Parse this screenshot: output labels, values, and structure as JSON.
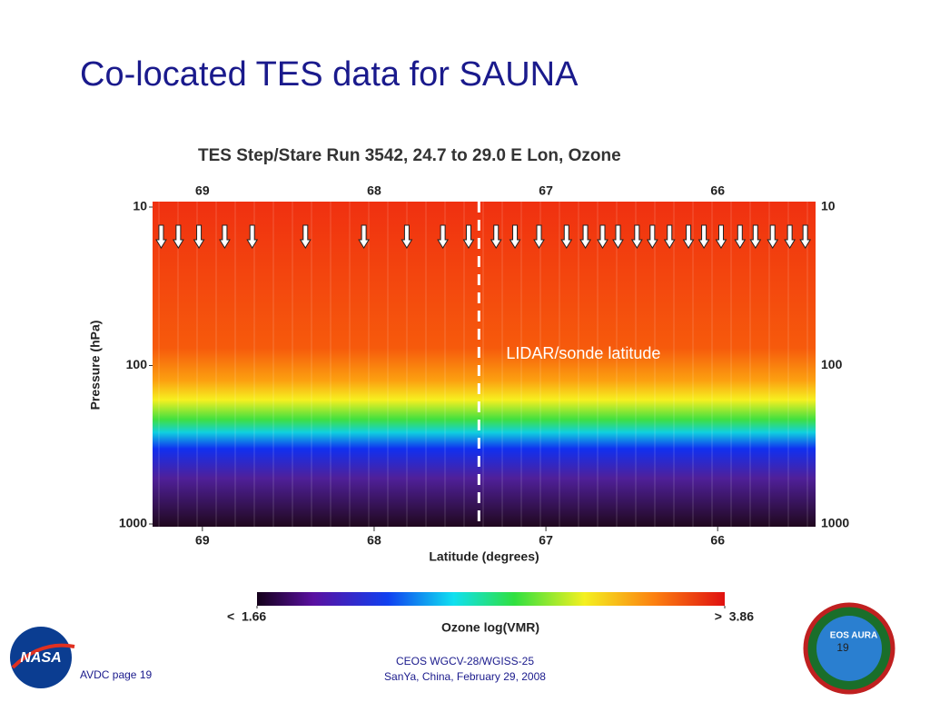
{
  "slide": {
    "title": "Co-located TES data for SAUNA",
    "footer_left": "AVDC page 19",
    "footer_center": [
      "CEOS WGCV-28/WGISS-25",
      "SanYa, China, February 29, 2008"
    ],
    "page_number": "19",
    "logos": [
      "NASA",
      "EOS AURA"
    ]
  },
  "chart_data": {
    "type": "contour",
    "title": "TES Step/Stare Run 3542, 24.7 to 29.0 E Lon,  Ozone",
    "xlabel": "Latitude (degrees)",
    "ylabel": "Pressure (hPa)",
    "xlim": [
      69.29,
      65.43
    ],
    "xticks": [
      69,
      68,
      67,
      66
    ],
    "ylim": [
      1000,
      10
    ],
    "yticks": [
      10,
      100,
      1000
    ],
    "log_y": true,
    "profile_latitudes": [
      69.24,
      69.14,
      69.02,
      68.87,
      68.71,
      68.4,
      68.06,
      67.81,
      67.6,
      67.45,
      67.29,
      67.18,
      67.04,
      66.88,
      66.77,
      66.67,
      66.58,
      66.47,
      66.38,
      66.28,
      66.17,
      66.08,
      65.98,
      65.87,
      65.78,
      65.68,
      65.58,
      65.49
    ],
    "annotation": {
      "text": "LIDAR/sonde latitude",
      "x": 67.39
    },
    "colorbar": {
      "label": "Ozone log(VMR)",
      "clim": [
        1.66,
        3.86
      ],
      "cticks": [
        {
          "value": 1.66,
          "label": "<  1.66"
        },
        {
          "value": 3.86,
          "label": ">  3.86"
        }
      ]
    }
  }
}
